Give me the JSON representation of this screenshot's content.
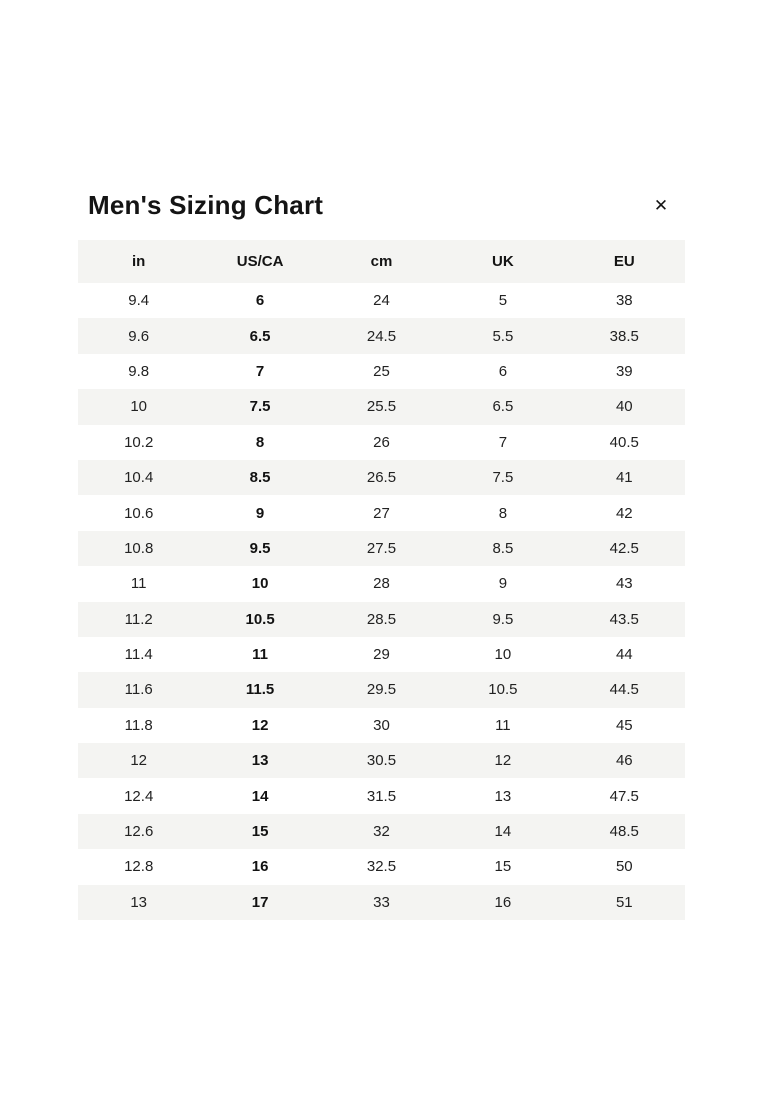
{
  "modal": {
    "title": "Men's Sizing Chart",
    "close_icon": "✕"
  },
  "table": {
    "columns": [
      "in",
      "US/CA",
      "cm",
      "UK",
      "EU"
    ],
    "bold_column": "US/CA",
    "rows": [
      [
        "9.4",
        "6",
        "24",
        "5",
        "38"
      ],
      [
        "9.6",
        "6.5",
        "24.5",
        "5.5",
        "38.5"
      ],
      [
        "9.8",
        "7",
        "25",
        "6",
        "39"
      ],
      [
        "10",
        "7.5",
        "25.5",
        "6.5",
        "40"
      ],
      [
        "10.2",
        "8",
        "26",
        "7",
        "40.5"
      ],
      [
        "10.4",
        "8.5",
        "26.5",
        "7.5",
        "41"
      ],
      [
        "10.6",
        "9",
        "27",
        "8",
        "42"
      ],
      [
        "10.8",
        "9.5",
        "27.5",
        "8.5",
        "42.5"
      ],
      [
        "11",
        "10",
        "28",
        "9",
        "43"
      ],
      [
        "11.2",
        "10.5",
        "28.5",
        "9.5",
        "43.5"
      ],
      [
        "11.4",
        "11",
        "29",
        "10",
        "44"
      ],
      [
        "11.6",
        "11.5",
        "29.5",
        "10.5",
        "44.5"
      ],
      [
        "11.8",
        "12",
        "30",
        "11",
        "45"
      ],
      [
        "12",
        "13",
        "30.5",
        "12",
        "46"
      ],
      [
        "12.4",
        "14",
        "31.5",
        "13",
        "47.5"
      ],
      [
        "12.6",
        "15",
        "32",
        "14",
        "48.5"
      ],
      [
        "12.8",
        "16",
        "32.5",
        "15",
        "50"
      ],
      [
        "13",
        "17",
        "33",
        "16",
        "51"
      ]
    ]
  },
  "colors": {
    "stripe": "#f4f4f2",
    "background": "#ffffff",
    "text": "#222222",
    "heading_text": "#141414"
  }
}
